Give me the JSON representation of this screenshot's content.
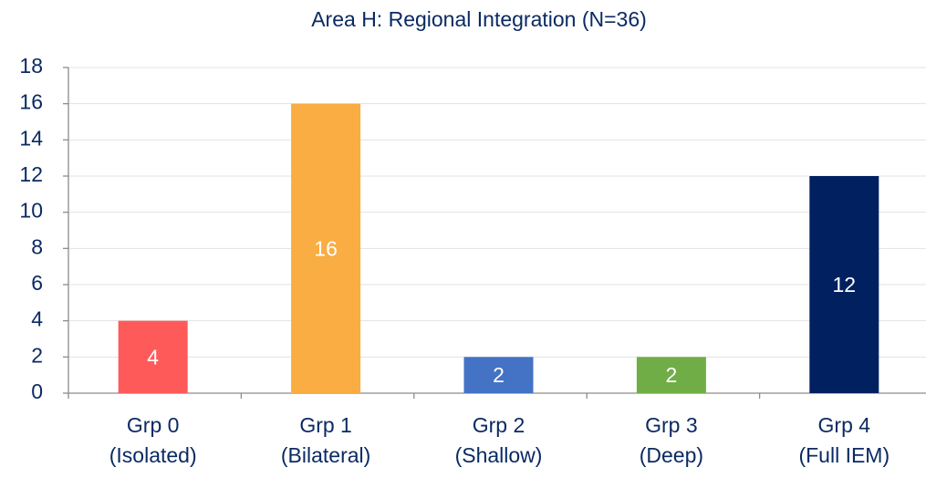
{
  "chart_data": {
    "type": "bar",
    "title": "Area H: Regional Integration (N=36)",
    "categories": [
      [
        "Grp 0",
        "(Isolated)"
      ],
      [
        "Grp 1",
        "(Bilateral)"
      ],
      [
        "Grp 2",
        "(Shallow)"
      ],
      [
        "Grp 3",
        "(Deep)"
      ],
      [
        "Grp 4",
        "(Full IEM)"
      ]
    ],
    "values": [
      4,
      16,
      2,
      2,
      12
    ],
    "colors": [
      "#ff5a5a",
      "#f9ad42",
      "#4472c4",
      "#70ad47",
      "#002060"
    ],
    "ylim": [
      0,
      18
    ],
    "yticks": [
      0,
      2,
      4,
      6,
      8,
      10,
      12,
      14,
      16,
      18
    ],
    "grid": true
  }
}
